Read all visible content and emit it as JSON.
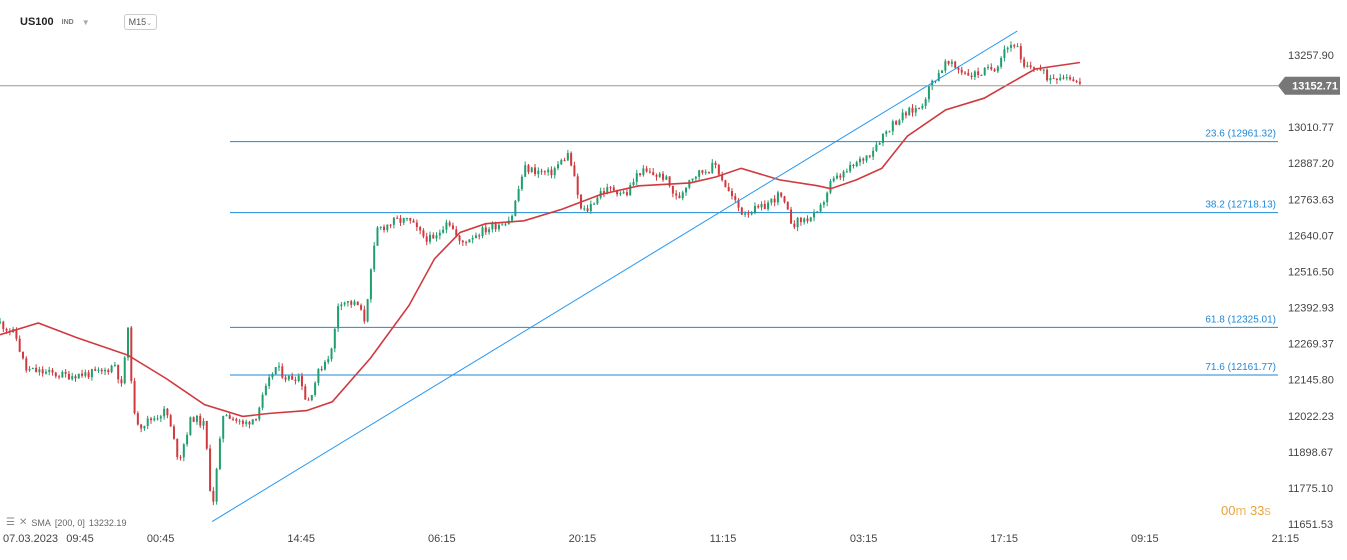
{
  "header": {
    "symbol": "US100",
    "symbol_type": "IND",
    "timeframe": "M15"
  },
  "indicator": {
    "label": "SMA",
    "params": "[200,  0]",
    "value": "13232.19"
  },
  "timer": {
    "minutes": "00",
    "m": "m",
    "seconds": "33",
    "s": "s"
  },
  "current_price": "13152.71",
  "colors": {
    "up": "#1f9e6e",
    "down": "#d0393e",
    "sma": "#d0393e",
    "fib": "#1e88d6",
    "trendline": "#2196f3",
    "price_badge": "#777777"
  },
  "chart_data": {
    "type": "candlestick",
    "timeframe": "M15",
    "y_ticks": [
      "13257.90",
      "13010.77",
      "12887.20",
      "12763.63",
      "12640.07",
      "12516.50",
      "12392.93",
      "12269.37",
      "12145.80",
      "12022.23",
      "11898.67",
      "11775.10",
      "11651.53"
    ],
    "ylim": [
      11651.53,
      13257.9
    ],
    "x_ticks": [
      "07.03.2023",
      "09:45",
      "00:45",
      "14:45",
      "06:15",
      "20:15",
      "11:15",
      "03:15",
      "17:15",
      "09:15",
      "21:15"
    ],
    "fib_levels": [
      {
        "label": "23.6 (12961.32)",
        "value": 12961.32
      },
      {
        "label": "38.2 (12718.13)",
        "value": 12718.13
      },
      {
        "label": "61.8 (12325.01)",
        "value": 12325.01
      },
      {
        "label": "71.6 (12161.77)",
        "value": 12161.77
      }
    ],
    "current_price": 13152.71,
    "trendline": {
      "from": [
        0.166,
        11660
      ],
      "to": [
        0.796,
        13340
      ]
    },
    "close_anchors": [
      [
        0.0,
        12340
      ],
      [
        0.012,
        12300
      ],
      [
        0.02,
        12180
      ],
      [
        0.05,
        12160
      ],
      [
        0.08,
        12170
      ],
      [
        0.09,
        12200
      ],
      [
        0.095,
        12120
      ],
      [
        0.1,
        12320
      ],
      [
        0.105,
        12020
      ],
      [
        0.11,
        11990
      ],
      [
        0.13,
        12040
      ],
      [
        0.14,
        11870
      ],
      [
        0.15,
        12020
      ],
      [
        0.16,
        11990
      ],
      [
        0.166,
        11700
      ],
      [
        0.175,
        12040
      ],
      [
        0.19,
        11990
      ],
      [
        0.2,
        12020
      ],
      [
        0.215,
        12190
      ],
      [
        0.225,
        12150
      ],
      [
        0.235,
        12160
      ],
      [
        0.24,
        12060
      ],
      [
        0.25,
        12180
      ],
      [
        0.26,
        12250
      ],
      [
        0.265,
        12420
      ],
      [
        0.28,
        12400
      ],
      [
        0.285,
        12350
      ],
      [
        0.295,
        12660
      ],
      [
        0.31,
        12690
      ],
      [
        0.32,
        12690
      ],
      [
        0.33,
        12640
      ],
      [
        0.34,
        12620
      ],
      [
        0.35,
        12700
      ],
      [
        0.36,
        12610
      ],
      [
        0.37,
        12640
      ],
      [
        0.38,
        12660
      ],
      [
        0.4,
        12700
      ],
      [
        0.41,
        12870
      ],
      [
        0.43,
        12850
      ],
      [
        0.445,
        12920
      ],
      [
        0.455,
        12720
      ],
      [
        0.46,
        12730
      ],
      [
        0.47,
        12790
      ],
      [
        0.48,
        12800
      ],
      [
        0.49,
        12780
      ],
      [
        0.5,
        12860
      ],
      [
        0.52,
        12840
      ],
      [
        0.53,
        12760
      ],
      [
        0.54,
        12840
      ],
      [
        0.56,
        12880
      ],
      [
        0.57,
        12790
      ],
      [
        0.58,
        12720
      ],
      [
        0.595,
        12730
      ],
      [
        0.61,
        12780
      ],
      [
        0.62,
        12680
      ],
      [
        0.64,
        12710
      ],
      [
        0.65,
        12820
      ],
      [
        0.66,
        12850
      ],
      [
        0.68,
        12920
      ],
      [
        0.69,
        12980
      ],
      [
        0.7,
        13030
      ],
      [
        0.71,
        13060
      ],
      [
        0.72,
        13080
      ],
      [
        0.73,
        13170
      ],
      [
        0.74,
        13230
      ],
      [
        0.75,
        13210
      ],
      [
        0.76,
        13190
      ],
      [
        0.77,
        13200
      ],
      [
        0.78,
        13220
      ],
      [
        0.785,
        13280
      ],
      [
        0.795,
        13300
      ],
      [
        0.8,
        13210
      ],
      [
        0.81,
        13220
      ],
      [
        0.82,
        13180
      ],
      [
        0.83,
        13190
      ],
      [
        0.84,
        13180
      ],
      [
        0.845,
        13152.71
      ]
    ],
    "sma_200": [
      [
        0.0,
        12300
      ],
      [
        0.03,
        12340
      ],
      [
        0.06,
        12290
      ],
      [
        0.1,
        12230
      ],
      [
        0.13,
        12150
      ],
      [
        0.16,
        12060
      ],
      [
        0.19,
        12020
      ],
      [
        0.21,
        12030
      ],
      [
        0.24,
        12040
      ],
      [
        0.26,
        12070
      ],
      [
        0.29,
        12220
      ],
      [
        0.32,
        12400
      ],
      [
        0.34,
        12560
      ],
      [
        0.36,
        12650
      ],
      [
        0.38,
        12680
      ],
      [
        0.41,
        12690
      ],
      [
        0.44,
        12730
      ],
      [
        0.47,
        12780
      ],
      [
        0.5,
        12810
      ],
      [
        0.54,
        12820
      ],
      [
        0.56,
        12840
      ],
      [
        0.58,
        12870
      ],
      [
        0.61,
        12830
      ],
      [
        0.64,
        12810
      ],
      [
        0.65,
        12800
      ],
      [
        0.67,
        12830
      ],
      [
        0.69,
        12870
      ],
      [
        0.71,
        12980
      ],
      [
        0.74,
        13070
      ],
      [
        0.77,
        13110
      ],
      [
        0.79,
        13160
      ],
      [
        0.81,
        13210
      ],
      [
        0.845,
        13232.19
      ]
    ]
  }
}
